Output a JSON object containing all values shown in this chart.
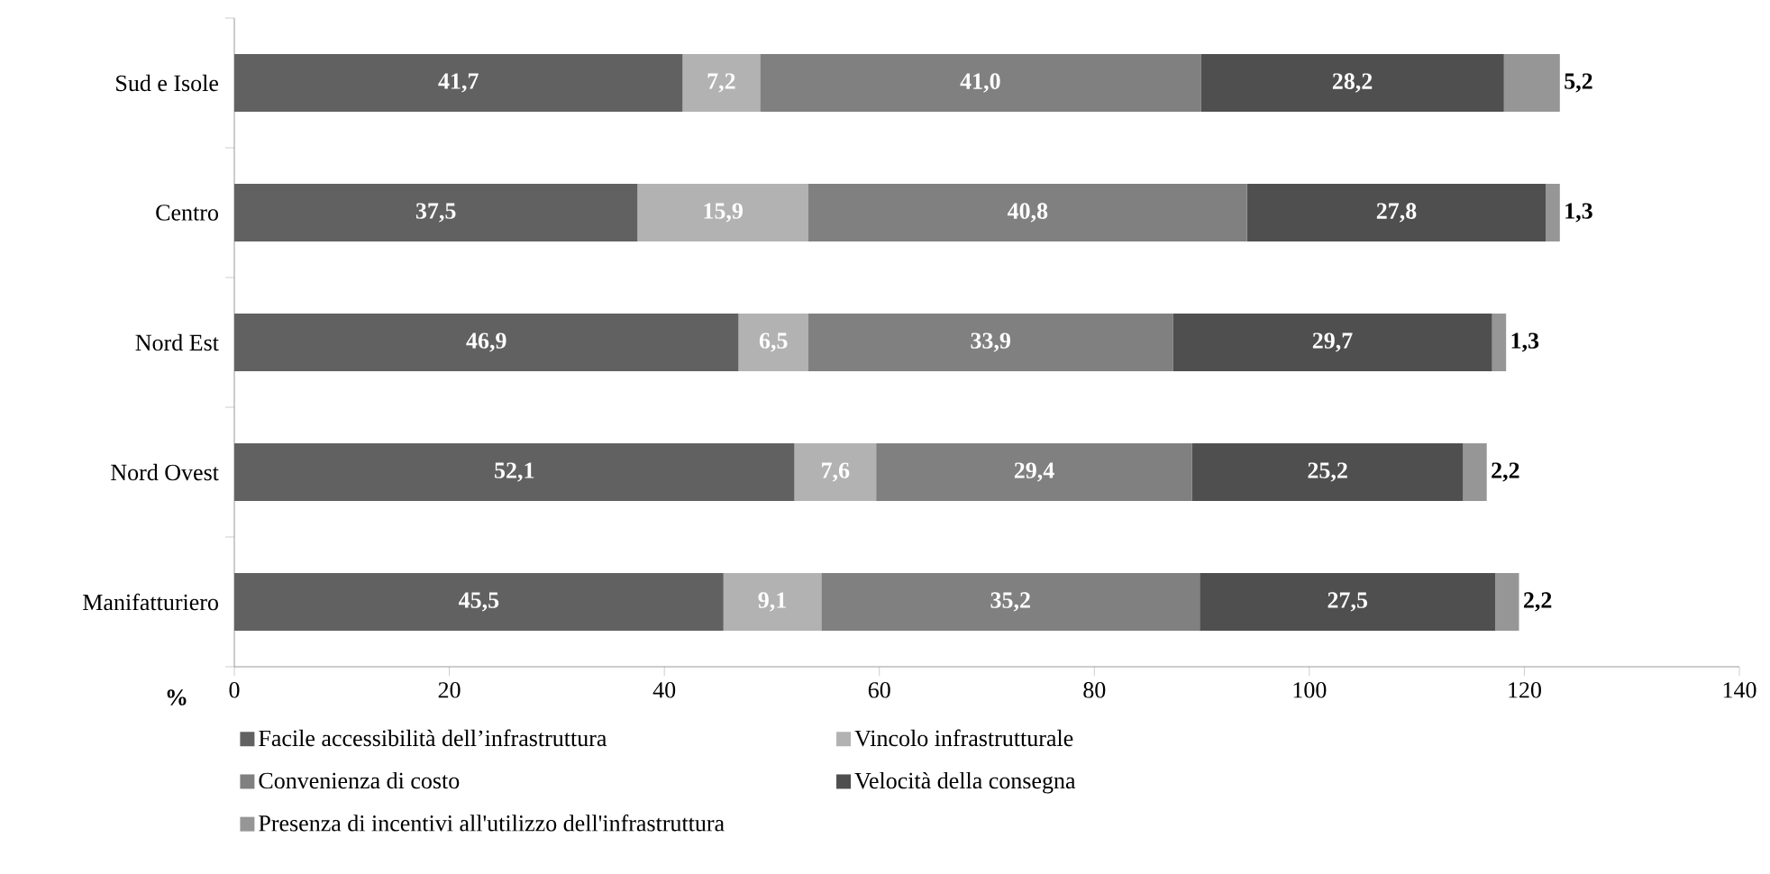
{
  "chart_data": {
    "type": "bar",
    "orientation": "horizontal",
    "stacked": true,
    "xlabel": "%",
    "categories": [
      "Sud e Isole",
      "Centro",
      "Nord Est",
      "Nord Ovest",
      "Manifatturiero"
    ],
    "series": [
      {
        "name": "Facile accessibilità dell’infrastruttura",
        "color": "#616161",
        "values": [
          41.7,
          37.5,
          46.9,
          52.1,
          45.5
        ],
        "value_labels": [
          "41,7",
          "37,5",
          "46,9",
          "52,1",
          "45,5"
        ]
      },
      {
        "name": "Vincolo infrastrutturale",
        "color": "#b2b2b2",
        "values": [
          7.2,
          15.9,
          6.5,
          7.6,
          9.1
        ],
        "value_labels": [
          "7,2",
          "15,9",
          "6,5",
          "7,6",
          "9,1"
        ]
      },
      {
        "name": "Convenienza di costo",
        "color": "#808080",
        "values": [
          41.0,
          40.8,
          33.9,
          29.4,
          35.2
        ],
        "value_labels": [
          "41,0",
          "40,8",
          "33,9",
          "29,4",
          "35,2"
        ]
      },
      {
        "name": "Velocità della consegna",
        "color": "#4f4f4f",
        "values": [
          28.2,
          27.8,
          29.7,
          25.2,
          27.5
        ],
        "value_labels": [
          "28,2",
          "27,8",
          "29,7",
          "25,2",
          "27,5"
        ]
      },
      {
        "name": "Presenza di incentivi all'utilizzo dell'infrastruttura",
        "color": "#969696",
        "values": [
          5.2,
          1.3,
          1.3,
          2.2,
          2.2
        ],
        "value_labels": [
          "5,2",
          "1,3",
          "1,3",
          "2,2",
          "2,2"
        ]
      }
    ],
    "xlim": [
      0,
      140
    ],
    "xticks": [
      0,
      20,
      40,
      60,
      80,
      100,
      120,
      140
    ],
    "grid": false,
    "legend": "bottom"
  }
}
